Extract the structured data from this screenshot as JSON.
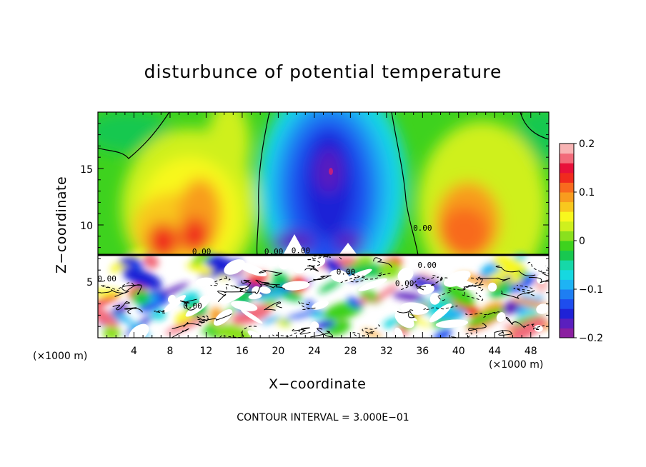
{
  "chart_data": {
    "type": "heatmap",
    "title": "disturbunce of potential temperature",
    "xlabel": "X−coordinate",
    "ylabel": "Z−coordinate",
    "x_units": "(×1000 m)",
    "y_units": "(×1000 m)",
    "x_ticks": [
      "4",
      "8",
      "12",
      "16",
      "20",
      "24",
      "28",
      "32",
      "36",
      "40",
      "44",
      "48"
    ],
    "y_ticks": [
      "5",
      "10",
      "15"
    ],
    "xlim": [
      0,
      50
    ],
    "ylim": [
      0,
      20
    ],
    "colorbar": {
      "ticks": [
        "0.2",
        "0.1",
        "0",
        "−0.1",
        "−0.2"
      ],
      "range": [
        -0.2,
        0.2
      ],
      "colors": [
        "#8b1fa0",
        "#5a1fbe",
        "#1f22d6",
        "#1e4dee",
        "#1e7ef2",
        "#1eb3f4",
        "#16d8e0",
        "#16d8a8",
        "#18c850",
        "#3ed21e",
        "#8ae01e",
        "#cff01e",
        "#f8f81e",
        "#f8c81e",
        "#f89c1e",
        "#f86a1e",
        "#f02a1e",
        "#e8103a",
        "#f26b7a",
        "#f8b4b4"
      ]
    },
    "contour_labels": [
      "0.00",
      "0.00",
      "0.00",
      "0.00",
      "0.00",
      "0.00",
      "0.00",
      "0.00",
      "0.00"
    ],
    "contour_interval": "CONTOUR INTERVAL = 3.000E−01",
    "fields": {
      "upper_layer_z_range": [
        7.3,
        20
      ],
      "features": [
        {
          "x": 26,
          "z": 14.5,
          "value": -0.19
        },
        {
          "x": 8,
          "z": 9.5,
          "value": 0.15
        },
        {
          "x": 13,
          "z": 11,
          "value": 0.13
        },
        {
          "x": 41,
          "z": 10.5,
          "value": 0.11
        },
        {
          "x": 47,
          "z": 17,
          "value": 0.03
        },
        {
          "x": 3,
          "z": 17,
          "value": 0.0
        }
      ]
    }
  }
}
